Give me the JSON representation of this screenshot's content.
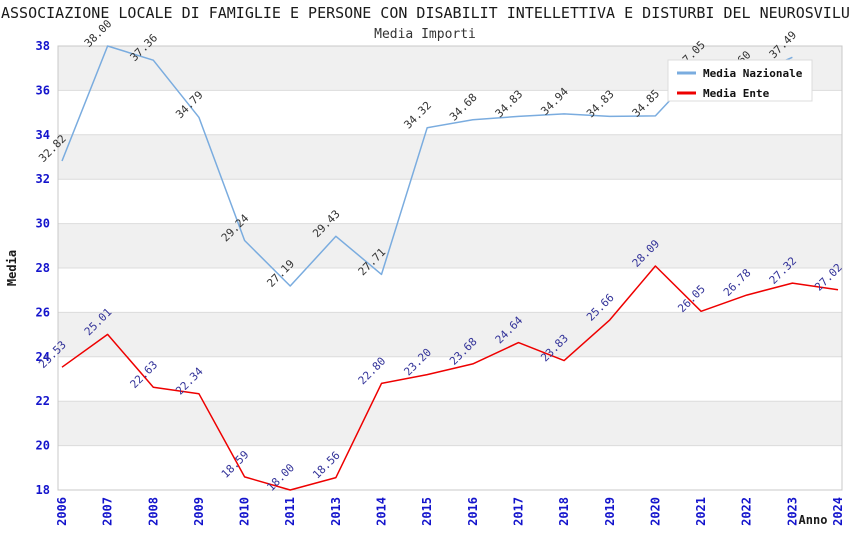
{
  "header": {
    "title": "ASSOCIAZIONE LOCALE DI FAMIGLIE E PERSONE CON DISABILIT INTELLETTIVA E DISTURBI DEL NEUROSVILU",
    "subtitle": "Media Importi"
  },
  "legend": {
    "items": [
      {
        "label": "Media Nazionale",
        "color": "#7AACDF"
      },
      {
        "label": "Media Ente",
        "color": "#EE0000"
      }
    ]
  },
  "axes": {
    "x_title": "Anno",
    "y_title": "Media",
    "tick_color": "#1414CC",
    "y_tick_labels": [
      "18",
      "20",
      "22",
      "24",
      "26",
      "28",
      "30",
      "32",
      "34",
      "36",
      "38"
    ],
    "x_tick_labels": [
      "2006",
      "2007",
      "2008",
      "2009",
      "2010",
      "2011",
      "2013",
      "2014",
      "2015",
      "2016",
      "2017",
      "2018",
      "2019",
      "2020",
      "2021",
      "2022",
      "2023",
      "2024"
    ]
  },
  "chart_data": {
    "type": "line",
    "title": "Media Importi",
    "xlabel": "Anno",
    "ylabel": "Media",
    "x": [
      "2006",
      "2007",
      "2008",
      "2009",
      "2010",
      "2011",
      "2013",
      "2014",
      "2015",
      "2016",
      "2017",
      "2018",
      "2019",
      "2020",
      "2021",
      "2022",
      "2023",
      "2024"
    ],
    "series": [
      {
        "name": "Media Nazionale",
        "color": "#7AACDF",
        "label_color": "#333333",
        "values": [
          32.82,
          38.0,
          37.36,
          34.79,
          29.24,
          27.19,
          29.43,
          27.71,
          34.32,
          34.68,
          34.83,
          34.94,
          34.83,
          34.85,
          37.05,
          36.6,
          37.49,
          null
        ]
      },
      {
        "name": "Media Ente",
        "color": "#EE0000",
        "label_color": "#333399",
        "values": [
          23.53,
          25.01,
          22.63,
          22.34,
          18.59,
          18.0,
          18.56,
          22.8,
          23.2,
          23.68,
          24.64,
          23.83,
          25.66,
          28.09,
          26.05,
          26.78,
          27.32,
          27.02
        ]
      }
    ],
    "ylim": [
      18,
      38
    ],
    "y_tick_step": 2,
    "grid": true,
    "band_colors": [
      "#F0F0F0",
      "#FFFFFF"
    ],
    "legend_position": "top-right"
  }
}
